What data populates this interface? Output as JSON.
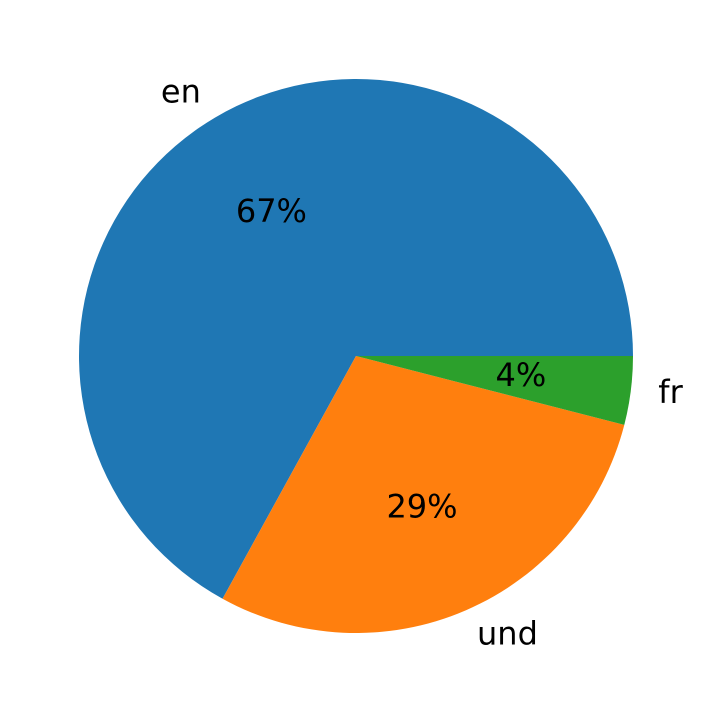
{
  "chart_data": {
    "type": "pie",
    "categories": [
      "en",
      "und",
      "fr"
    ],
    "values": [
      67,
      29,
      4
    ],
    "value_labels": [
      "67%",
      "29%",
      "4%"
    ],
    "colors": [
      "#1f77b4",
      "#ff7f0e",
      "#2ca02c"
    ]
  }
}
